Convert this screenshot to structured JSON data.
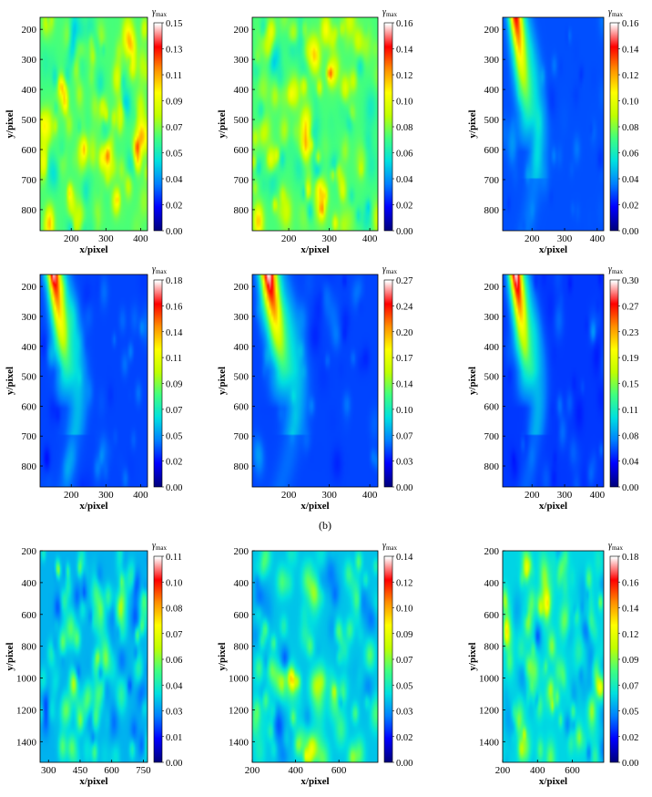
{
  "figure_label": "(b)",
  "colormap_stops": [
    "#000080",
    "#0000ff",
    "#0080ff",
    "#00e0e0",
    "#40ff80",
    "#c0ff00",
    "#ffff00",
    "#ff9000",
    "#ff0000",
    "#ffffff"
  ],
  "chart_data": [
    {
      "type": "heatmap",
      "xlabel": "x/pixel",
      "ylabel": "y/pixel",
      "colorbar_label": "γmax",
      "xticks": [
        200,
        300,
        400
      ],
      "yticks": [
        200,
        300,
        400,
        500,
        600,
        700,
        800
      ],
      "xlim": [
        110,
        420
      ],
      "ylim": [
        160,
        870
      ],
      "colorbar_ticks": [
        "0.00",
        "0.02",
        "0.04",
        "0.05",
        "0.07",
        "0.09",
        "0.11",
        "0.13",
        "0.15"
      ],
      "pattern": "random",
      "max_level": 0.8,
      "base_level": 0.45,
      "seed": 11
    },
    {
      "type": "heatmap",
      "xlabel": "x/pixel",
      "ylabel": "y/pixel",
      "colorbar_label": "γmax",
      "xticks": [
        200,
        300,
        400
      ],
      "yticks": [
        200,
        300,
        400,
        500,
        600,
        700,
        800
      ],
      "xlim": [
        110,
        420
      ],
      "ylim": [
        160,
        870
      ],
      "colorbar_ticks": [
        "0.00",
        "0.02",
        "0.04",
        "0.06",
        "0.08",
        "0.10",
        "0.12",
        "0.14",
        "0.16"
      ],
      "pattern": "random",
      "max_level": 0.85,
      "base_level": 0.45,
      "seed": 23
    },
    {
      "type": "heatmap",
      "xlabel": "x/pixel",
      "ylabel": "y/pixel",
      "colorbar_label": "γmax",
      "xticks": [
        200,
        300,
        400
      ],
      "yticks": [
        200,
        300,
        400,
        500,
        600,
        700,
        800
      ],
      "xlim": [
        110,
        420
      ],
      "ylim": [
        160,
        870
      ],
      "colorbar_ticks": [
        "0.00",
        "0.02",
        "0.04",
        "0.06",
        "0.08",
        "0.10",
        "0.12",
        "0.14",
        "0.16"
      ],
      "pattern": "band",
      "max_level": 0.85,
      "base_level": 0.18,
      "seed": 5
    },
    {
      "type": "heatmap",
      "xlabel": "x/pixel",
      "ylabel": "y/pixel",
      "colorbar_label": "γmax",
      "xticks": [
        200,
        300,
        400
      ],
      "yticks": [
        200,
        300,
        400,
        500,
        600,
        700,
        800
      ],
      "xlim": [
        110,
        420
      ],
      "ylim": [
        160,
        870
      ],
      "colorbar_ticks": [
        "0.00",
        "0.02",
        "0.05",
        "0.07",
        "0.09",
        "0.11",
        "0.14",
        "0.16",
        "0.18"
      ],
      "pattern": "band",
      "max_level": 0.9,
      "base_level": 0.17,
      "seed": 7
    },
    {
      "type": "heatmap",
      "xlabel": "x/pixel",
      "ylabel": "y/pixel",
      "colorbar_label": "γmax",
      "xticks": [
        200,
        300,
        400
      ],
      "yticks": [
        200,
        300,
        400,
        500,
        600,
        700,
        800
      ],
      "xlim": [
        110,
        420
      ],
      "ylim": [
        160,
        870
      ],
      "colorbar_ticks": [
        "0.00",
        "0.03",
        "0.07",
        "0.10",
        "0.14",
        "0.17",
        "0.20",
        "0.24",
        "0.27"
      ],
      "pattern": "band",
      "max_level": 0.95,
      "base_level": 0.17,
      "seed": 9
    },
    {
      "type": "heatmap",
      "xlabel": "x/pixel",
      "ylabel": "y/pixel",
      "colorbar_label": "γmax",
      "xticks": [
        200,
        300,
        400
      ],
      "yticks": [
        200,
        300,
        400,
        500,
        600,
        700,
        800
      ],
      "xlim": [
        110,
        420
      ],
      "ylim": [
        160,
        870
      ],
      "colorbar_ticks": [
        "0.00",
        "0.04",
        "0.08",
        "0.11",
        "0.15",
        "0.19",
        "0.23",
        "0.27",
        "0.30"
      ],
      "pattern": "band",
      "max_level": 0.95,
      "base_level": 0.16,
      "seed": 13
    },
    {
      "type": "heatmap",
      "xlabel": "x/pixel",
      "ylabel": "y/pixel",
      "colorbar_label": "γmax",
      "xticks": [
        300,
        450,
        600,
        750
      ],
      "yticks": [
        200,
        400,
        600,
        800,
        1000,
        1200,
        1400
      ],
      "xlim": [
        260,
        770
      ],
      "ylim": [
        200,
        1530
      ],
      "colorbar_ticks": [
        "0.00",
        "0.01",
        "0.03",
        "0.04",
        "0.06",
        "0.07",
        "0.08",
        "0.10",
        "0.11"
      ],
      "pattern": "random",
      "max_level": 0.45,
      "base_level": 0.28,
      "seed": 31
    },
    {
      "type": "heatmap",
      "xlabel": "x/pixel",
      "ylabel": "y/pixel",
      "colorbar_label": "γmax",
      "xticks": [
        200,
        400,
        600
      ],
      "yticks": [
        200,
        400,
        600,
        800,
        1000,
        1200,
        1400
      ],
      "xlim": [
        200,
        780
      ],
      "ylim": [
        200,
        1530
      ],
      "colorbar_ticks": [
        "0.00",
        "0.02",
        "0.03",
        "0.05",
        "0.07",
        "0.09",
        "0.10",
        "0.12",
        "0.14"
      ],
      "pattern": "random",
      "max_level": 0.5,
      "base_level": 0.3,
      "seed": 37
    },
    {
      "type": "heatmap",
      "xlabel": "x/pixel",
      "ylabel": "y/pixel",
      "colorbar_label": "γmax",
      "xticks": [
        200,
        400,
        600
      ],
      "yticks": [
        200,
        400,
        600,
        800,
        1000,
        1200,
        1400
      ],
      "xlim": [
        200,
        780
      ],
      "ylim": [
        200,
        1530
      ],
      "colorbar_ticks": [
        "0.00",
        "0.02",
        "0.05",
        "0.07",
        "0.09",
        "0.12",
        "0.14",
        "0.16",
        "0.18"
      ],
      "pattern": "random",
      "max_level": 0.5,
      "base_level": 0.32,
      "seed": 41
    }
  ]
}
